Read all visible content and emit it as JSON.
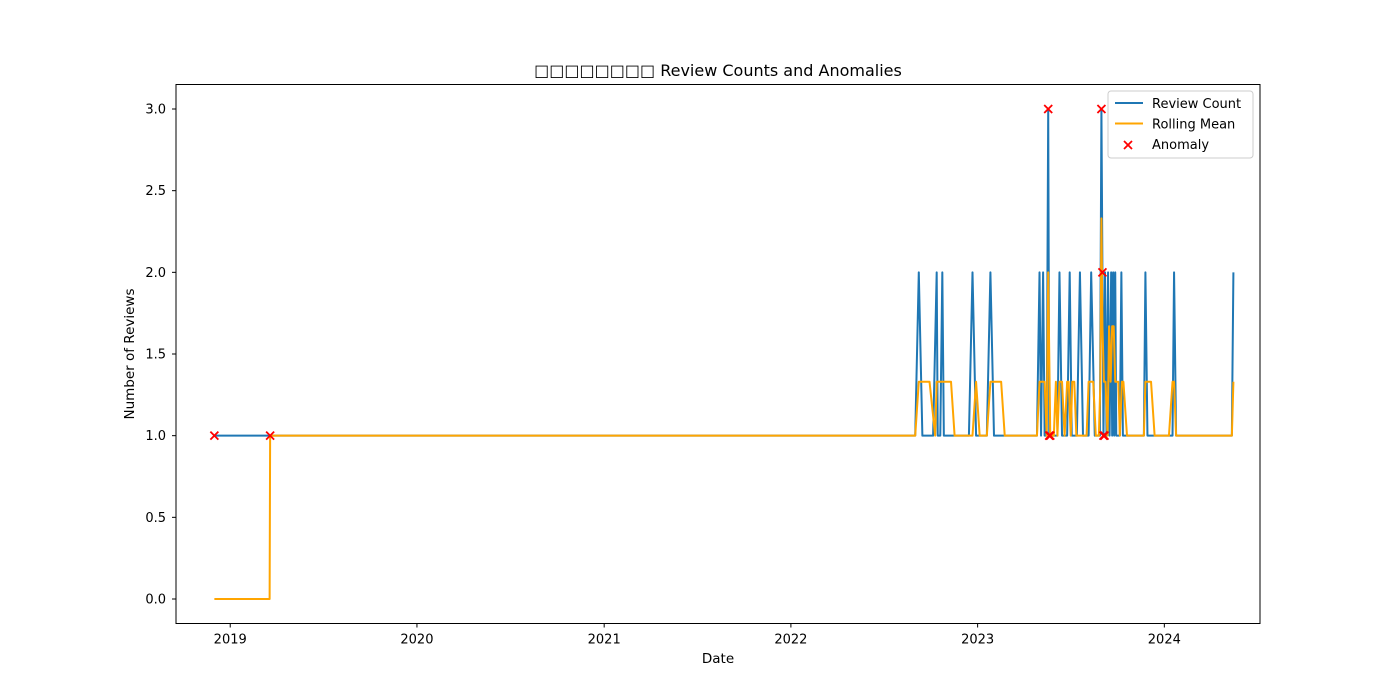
{
  "chart_data": {
    "type": "line",
    "title": "□□□□□□□□ Review Counts and Anomalies",
    "xlabel": "Date",
    "ylabel": "Number of Reviews",
    "xlim": [
      "2018-09-17",
      "2024-07-06"
    ],
    "ylim": [
      -0.15,
      3.15
    ],
    "x_ticks": [
      "2019",
      "2020",
      "2021",
      "2022",
      "2023",
      "2024"
    ],
    "y_ticks": [
      "0.0",
      "0.5",
      "1.0",
      "1.5",
      "2.0",
      "2.5",
      "3.0"
    ],
    "grid": false,
    "legend": "top-right",
    "colors": {
      "review_count": "#1f77b4",
      "rolling_mean": "#ffa500",
      "anomaly": "#ff0000"
    },
    "series": [
      {
        "name": "Review Count",
        "x": [
          "2018-12-01",
          "2019-03-20",
          "2022-09-01",
          "2022-09-08",
          "2022-09-15",
          "2022-09-22",
          "2022-09-29",
          "2022-10-06",
          "2022-10-13",
          "2022-10-15",
          "2022-10-20",
          "2022-10-24",
          "2022-10-27",
          "2022-11-03",
          "2022-11-10",
          "2022-11-17",
          "2022-11-24",
          "2022-12-01",
          "2022-12-08",
          "2022-12-15",
          "2022-12-22",
          "2022-12-29",
          "2023-01-05",
          "2023-01-12",
          "2023-01-19",
          "2023-01-26",
          "2023-02-02",
          "2023-02-09",
          "2023-02-16",
          "2023-02-23",
          "2023-03-02",
          "2023-03-09",
          "2023-03-16",
          "2023-03-23",
          "2023-03-30",
          "2023-04-06",
          "2023-04-13",
          "2023-04-20",
          "2023-04-27",
          "2023-05-02",
          "2023-05-05",
          "2023-05-09",
          "2023-05-12",
          "2023-05-16",
          "2023-05-19",
          "2023-05-21",
          "2023-05-23",
          "2023-05-28",
          "2023-06-01",
          "2023-06-06",
          "2023-06-10",
          "2023-06-15",
          "2023-06-20",
          "2023-06-25",
          "2023-06-30",
          "2023-07-04",
          "2023-07-08",
          "2023-07-14",
          "2023-07-20",
          "2023-07-26",
          "2023-08-02",
          "2023-08-06",
          "2023-08-11",
          "2023-08-18",
          "2023-08-25",
          "2023-08-28",
          "2023-08-31",
          "2023-09-02",
          "2023-09-04",
          "2023-09-07",
          "2023-09-10",
          "2023-09-13",
          "2023-09-16",
          "2023-09-19",
          "2023-09-21",
          "2023-09-23",
          "2023-09-25",
          "2023-09-27",
          "2023-09-29",
          "2023-10-01",
          "2023-10-03",
          "2023-10-06",
          "2023-10-09",
          "2023-10-12",
          "2023-10-16",
          "2023-10-20",
          "2023-10-26",
          "2023-11-01",
          "2023-11-08",
          "2023-11-15",
          "2023-11-22",
          "2023-11-25",
          "2023-11-29",
          "2023-12-06",
          "2023-12-13",
          "2023-12-20",
          "2023-12-27",
          "2024-01-03",
          "2024-01-10",
          "2024-01-17",
          "2024-01-20",
          "2024-01-24",
          "2024-01-31",
          "2024-02-07",
          "2024-02-28",
          "2024-03-20",
          "2024-04-10",
          "2024-05-01",
          "2024-05-12",
          "2024-05-15"
        ],
        "values": [
          1,
          1,
          1,
          2,
          1,
          1,
          1,
          1,
          2,
          1,
          1,
          2,
          1,
          1,
          1,
          1,
          1,
          1,
          1,
          1,
          2,
          1,
          1,
          1,
          1,
          2,
          1,
          1,
          1,
          1,
          1,
          1,
          1,
          1,
          1,
          1,
          1,
          1,
          1,
          2,
          1,
          2,
          1,
          1,
          3,
          1,
          1,
          1,
          1,
          1,
          2,
          1,
          1,
          1,
          2,
          1,
          1,
          1,
          2,
          1,
          1,
          1,
          2,
          1,
          1,
          1,
          3,
          2,
          1,
          2,
          1,
          2,
          1,
          2,
          1,
          2,
          1,
          2,
          1,
          1,
          1,
          1,
          2,
          1,
          1,
          1,
          1,
          1,
          1,
          1,
          1,
          2,
          1,
          1,
          1,
          1,
          1,
          1,
          1,
          1,
          2,
          1,
          1,
          1,
          1,
          1,
          1,
          1,
          1,
          2
        ]
      },
      {
        "name": "Rolling Mean",
        "x": [
          "2018-12-01",
          "2019-03-19",
          "2019-03-20",
          "2022-09-01",
          "2022-09-08",
          "2022-09-22",
          "2022-09-29",
          "2022-10-10",
          "2022-10-13",
          "2022-10-20",
          "2022-10-27",
          "2022-11-10",
          "2022-11-17",
          "2022-12-08",
          "2022-12-15",
          "2022-12-22",
          "2022-12-29",
          "2023-01-05",
          "2023-01-19",
          "2023-01-26",
          "2023-02-02",
          "2023-02-16",
          "2023-02-23",
          "2023-04-27",
          "2023-05-02",
          "2023-05-12",
          "2023-05-16",
          "2023-05-19",
          "2023-05-23",
          "2023-05-26",
          "2023-05-30",
          "2023-06-03",
          "2023-06-06",
          "2023-06-10",
          "2023-06-15",
          "2023-06-20",
          "2023-06-25",
          "2023-06-28",
          "2023-07-02",
          "2023-07-05",
          "2023-07-09",
          "2023-07-13",
          "2023-07-20",
          "2023-07-26",
          "2023-08-02",
          "2023-08-06",
          "2023-08-10",
          "2023-08-15",
          "2023-08-20",
          "2023-08-26",
          "2023-08-29",
          "2023-08-31",
          "2023-09-02",
          "2023-09-05",
          "2023-09-08",
          "2023-09-12",
          "2023-09-15",
          "2023-09-18",
          "2023-09-21",
          "2023-09-24",
          "2023-09-27",
          "2023-09-30",
          "2023-10-03",
          "2023-10-06",
          "2023-10-10",
          "2023-10-13",
          "2023-10-20",
          "2023-10-27",
          "2023-11-03",
          "2023-11-22",
          "2023-11-25",
          "2023-11-29",
          "2023-12-06",
          "2023-12-13",
          "2024-01-10",
          "2024-01-17",
          "2024-01-20",
          "2024-01-24",
          "2024-01-31",
          "2024-05-12",
          "2024-05-15"
        ],
        "values": [
          0,
          0,
          1,
          1,
          1.33,
          1.33,
          1.33,
          1,
          1.33,
          1.33,
          1.33,
          1.33,
          1,
          1,
          1,
          1,
          1.33,
          1,
          1,
          1.33,
          1.33,
          1.33,
          1,
          1,
          1.33,
          1.33,
          1,
          2,
          1,
          1,
          1,
          1.33,
          1,
          1.33,
          1.33,
          1,
          1.33,
          1.33,
          1,
          1.33,
          1.33,
          1,
          1,
          1,
          1,
          1.33,
          1.33,
          1.33,
          1,
          1,
          1.33,
          2.33,
          1.67,
          1.33,
          1.33,
          1,
          1.67,
          1.33,
          1.67,
          1.67,
          1.33,
          1.33,
          1.33,
          1,
          1.33,
          1.33,
          1,
          1,
          1,
          1,
          1.33,
          1.33,
          1.33,
          1,
          1,
          1.33,
          1.33,
          1,
          1,
          1,
          1.33
        ]
      }
    ],
    "anomalies": {
      "name": "Anomaly",
      "x": [
        "2018-12-01",
        "2019-03-20",
        "2023-05-19",
        "2023-05-21",
        "2023-05-23",
        "2023-08-31",
        "2023-09-02",
        "2023-09-04",
        "2023-09-06"
      ],
      "y": [
        1,
        1,
        3,
        1,
        1,
        3,
        2,
        1,
        1
      ]
    }
  }
}
